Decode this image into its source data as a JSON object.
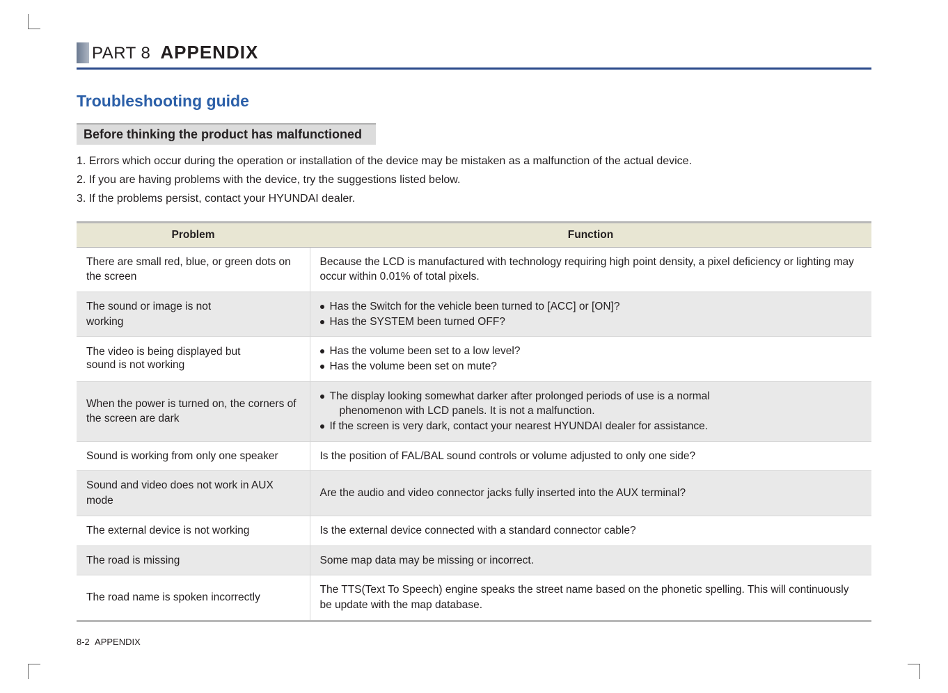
{
  "header": {
    "part_label": "PART 8",
    "part_title": "APPENDIX"
  },
  "section_title": "Troubleshooting guide",
  "subsection_title": "Before thinking the product has malfunctioned",
  "numbered": {
    "n1": "1. Errors which occur during the operation or installation of the device may be mistaken as a malfunction of the actual device.",
    "n2": "2. If you are having problems with the device, try the suggestions listed below.",
    "n3": "3. If the problems persist, contact your HYUNDAI dealer."
  },
  "table": {
    "col_problem": "Problem",
    "col_function": "Function",
    "rows": {
      "r0": {
        "problem": "There are small red, blue, or green dots on the screen",
        "func": "Because the LCD is manufactured with technology requiring high point density, a pixel deficiency or lighting may occur within 0.01% of total pixels."
      },
      "r1": {
        "problem_l1": "The sound or image is not",
        "problem_l2": "working",
        "b1": "Has the Switch for the vehicle been turned to [ACC] or [ON]?",
        "b2": "Has the SYSTEM been turned OFF?"
      },
      "r2": {
        "problem_l1": "The video is being displayed but",
        "problem_l2": "sound is not working",
        "b1": "Has the volume been set to a low level?",
        "b2": "Has the volume been set on mute?"
      },
      "r3": {
        "problem": "When the power is turned on, the corners of the screen are dark",
        "b1a": "The display looking somewhat darker after prolonged periods of use is a normal",
        "b1b": "phenomenon with LCD panels. It is not a malfunction.",
        "b2": "If the screen is very dark, contact your nearest HYUNDAI dealer for assistance."
      },
      "r4": {
        "problem": "Sound is working from only one speaker",
        "func": "Is the position of FAL/BAL sound controls or volume adjusted to only one side?"
      },
      "r5": {
        "problem": "Sound and video does not work in AUX mode",
        "func": "Are the audio and video connector jacks fully inserted into the AUX terminal?"
      },
      "r6": {
        "problem": "The external device is not working",
        "func": "Is the external device connected with a standard connector cable?"
      },
      "r7": {
        "problem": "The road is missing",
        "func": "Some map data may be missing or incorrect."
      },
      "r8": {
        "problem": "The road name is spoken incorrectly",
        "func": "The TTS(Text To Speech) engine speaks the street name based on the phonetic spelling. This will continuously be update with the map database."
      }
    }
  },
  "footer": {
    "page_num": "8-2",
    "page_label": "APPENDIX"
  }
}
